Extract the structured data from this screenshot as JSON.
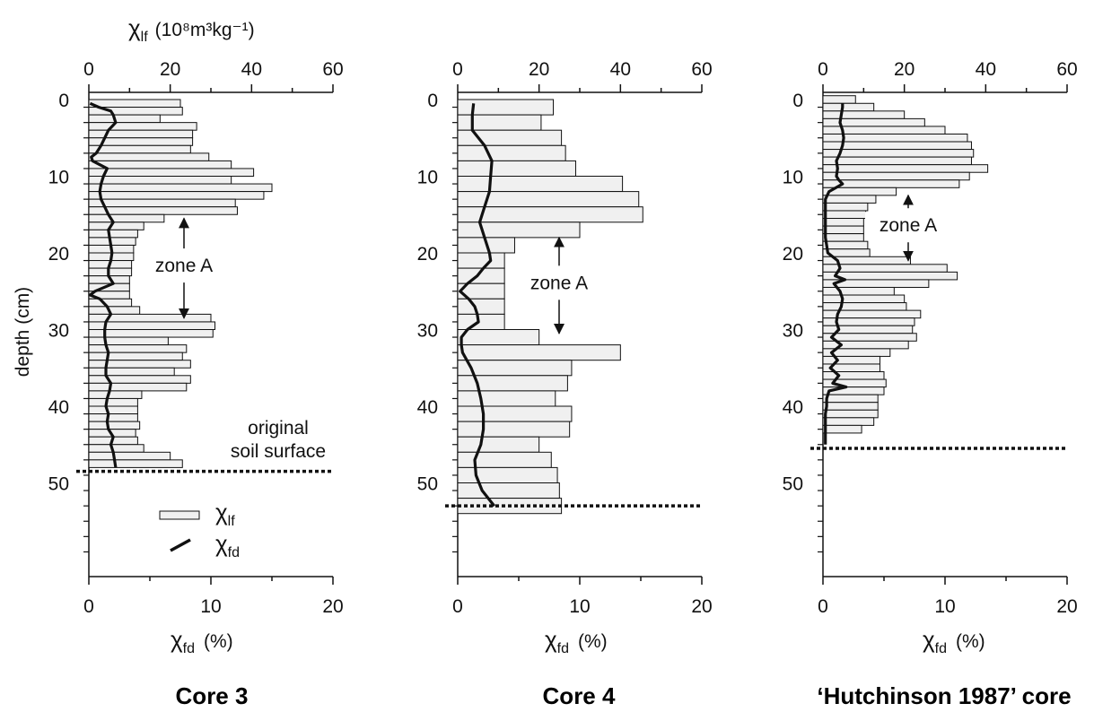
{
  "figure": {
    "top_axis_label": {
      "symbol": "χ",
      "sub": "lf",
      "unit": "(10⁸m³kg⁻¹)"
    },
    "bottom_axis_label": {
      "symbol": "χ",
      "sub": "fd",
      "unit": "(%)"
    },
    "y_axis_label": "depth (cm)",
    "legend": {
      "lf": {
        "symbol": "χ",
        "sub": "lf"
      },
      "fd": {
        "symbol": "χ",
        "sub": "fd"
      }
    },
    "colors": {
      "bar_fill": "#f0f0f0",
      "line": "#111111",
      "dotted": "#111111"
    }
  },
  "chart_data": [
    {
      "type": "bar",
      "title": "Core 3",
      "top_axis": {
        "label": "χlf (10⁸m³kg⁻¹)",
        "range": [
          0,
          60
        ],
        "ticks": [
          0,
          20,
          40,
          60
        ]
      },
      "bottom_axis": {
        "label": "χfd (%)",
        "range": [
          0,
          20
        ],
        "ticks": [
          0,
          10,
          20
        ]
      },
      "y_axis": {
        "label": "depth (cm)",
        "range": [
          -1,
          60
        ],
        "ticks": [
          0,
          10,
          20,
          30,
          40,
          50
        ]
      },
      "chi_lf": {
        "depth_top": [
          0,
          1,
          2,
          3,
          4,
          5,
          6,
          7,
          8,
          9,
          10,
          11,
          12,
          13,
          14,
          15,
          16,
          17,
          18,
          19,
          20,
          21,
          22,
          23,
          24,
          25,
          26,
          27,
          28,
          29,
          30,
          31,
          32,
          33,
          34,
          35,
          36,
          37,
          38,
          39,
          40,
          41,
          42,
          43,
          44,
          45,
          46,
          47
        ],
        "values": [
          22.5,
          23,
          17.5,
          26.5,
          25.5,
          25.5,
          25,
          29.5,
          35,
          40.5,
          35,
          45,
          43,
          36,
          36.5,
          18.5,
          13.5,
          12,
          11.5,
          11,
          11,
          10.5,
          10.5,
          10,
          10,
          10,
          10.5,
          12.5,
          30,
          31,
          30.5,
          19.5,
          24,
          23,
          25,
          21,
          25,
          24,
          13,
          12,
          12,
          12,
          12.5,
          11.5,
          12,
          13.5,
          20,
          23
        ]
      },
      "chi_fd": {
        "depth": [
          0.5,
          1,
          1.5,
          2,
          3,
          4,
          5,
          6,
          7,
          7.5,
          8,
          9,
          10,
          11,
          12,
          13,
          14,
          15,
          16,
          17,
          18,
          19,
          20,
          21,
          22,
          23,
          24,
          25,
          25.5,
          26,
          27,
          28,
          29,
          30,
          31,
          32,
          33,
          34,
          35,
          36,
          37,
          38,
          39,
          40,
          41,
          42,
          43,
          44,
          45,
          46,
          47,
          48
        ],
        "values": [
          0.1,
          0.8,
          1.8,
          2,
          2.2,
          1.6,
          1.3,
          1.0,
          0.6,
          0.2,
          0.3,
          1.5,
          1.2,
          1.0,
          0.9,
          1.0,
          1.3,
          1.6,
          2.0,
          1.6,
          1.7,
          1.8,
          1.9,
          1.8,
          1.6,
          1.6,
          2.0,
          0.5,
          0.1,
          0.9,
          1.5,
          1.8,
          1.4,
          1.3,
          1.3,
          1.4,
          1.6,
          1.5,
          1.4,
          1.4,
          1.8,
          1.7,
          1.5,
          1.4,
          1.6,
          1.5,
          1.6,
          2.0,
          1.8,
          2.0,
          2.1,
          2.2
        ]
      },
      "boundary_depth": 48.5,
      "zone_a": {
        "label": "zone A",
        "from": 15.5,
        "to": 28.5
      },
      "annotation": [
        "original",
        "soil surface"
      ]
    },
    {
      "type": "bar",
      "title": "Core 4",
      "top_axis": {
        "label": "χlf (10⁸m³kg⁻¹)",
        "range": [
          0,
          60
        ],
        "ticks": [
          0,
          20,
          40,
          60
        ]
      },
      "bottom_axis": {
        "label": "χfd (%)",
        "range": [
          0,
          20
        ],
        "ticks": [
          0,
          10,
          20
        ]
      },
      "y_axis": {
        "label": "depth (cm)",
        "range": [
          -1,
          60
        ],
        "ticks": [
          0,
          10,
          20,
          30,
          40,
          50
        ]
      },
      "chi_lf": {
        "depth_top": [
          0,
          2,
          4,
          6,
          8,
          10,
          12,
          14,
          16,
          18,
          20,
          22,
          24,
          26,
          28,
          30,
          32,
          34,
          36,
          38,
          40,
          42,
          44,
          46,
          48,
          50,
          52
        ],
        "values": [
          23.5,
          20.5,
          25.5,
          26.5,
          29,
          40.5,
          44.5,
          45.5,
          30,
          14,
          11.5,
          11.5,
          11.5,
          11.5,
          11.5,
          20,
          40,
          28,
          27,
          24,
          28,
          27.5,
          20,
          23,
          24.5,
          25,
          25.5
        ]
      },
      "chi_fd": {
        "depth": [
          0.5,
          2,
          4,
          6,
          8,
          10,
          12,
          14,
          16,
          18,
          20,
          21,
          22,
          23,
          24,
          25,
          26,
          27,
          28,
          29,
          30,
          31,
          32,
          33,
          35,
          37,
          39,
          41,
          43,
          45,
          47,
          49,
          51,
          53
        ],
        "values": [
          1.3,
          1.2,
          1.2,
          2.2,
          2.8,
          2.7,
          2.6,
          2.2,
          1.8,
          2.2,
          2.6,
          2.7,
          2.1,
          1.6,
          0.8,
          0.2,
          0.9,
          1.4,
          1.6,
          1.7,
          0.8,
          0.3,
          0.3,
          0.4,
          1.1,
          1.6,
          1.9,
          2.1,
          2.1,
          1.9,
          1.4,
          1.5,
          2.0,
          3.0
        ]
      },
      "boundary_depth": 53,
      "zone_a": {
        "label": "zone A",
        "from": 18,
        "to": 30.5
      }
    },
    {
      "type": "bar",
      "title": "‘Hutchinson 1987’ core",
      "top_axis": {
        "label": "χlf (10⁸m³kg⁻¹)",
        "range": [
          0,
          60
        ],
        "ticks": [
          0,
          20,
          40,
          60
        ]
      },
      "bottom_axis": {
        "label": "χfd (%)",
        "range": [
          0,
          20
        ],
        "ticks": [
          0,
          10,
          20
        ]
      },
      "y_axis": {
        "label": "depth (cm)",
        "range": [
          -1,
          60
        ],
        "ticks": [
          0,
          10,
          20,
          30,
          40,
          50
        ]
      },
      "chi_lf": {
        "depth_top": [
          -0.5,
          0.5,
          1.5,
          2.5,
          3.5,
          4.5,
          5.5,
          6.5,
          7.5,
          8.5,
          9.5,
          10.5,
          11.5,
          12.5,
          13.5,
          14.5,
          15.5,
          16.5,
          17.5,
          18.5,
          19.5,
          20.5,
          21.5,
          22.5,
          23.5,
          24.5,
          25.5,
          26.5,
          27.5,
          28.5,
          29.5,
          30.5,
          31.5,
          32.5,
          33.5,
          34.5,
          35.5,
          36.5,
          37.5,
          38.5,
          39.5,
          40.5,
          41.5,
          42.5,
          43.5
        ],
        "values": [
          8,
          12.5,
          20,
          25,
          30,
          35.5,
          36.5,
          37,
          36.5,
          40.5,
          36,
          33.5,
          18,
          13,
          11,
          10.5,
          10,
          10,
          10,
          11,
          11.5,
          21.5,
          30.5,
          33,
          26,
          17.5,
          20,
          20.5,
          24,
          22.5,
          22,
          23,
          21,
          16.5,
          14,
          14,
          15,
          15.5,
          15,
          13.5,
          13.5,
          13.5,
          12.5,
          9.5,
          0
        ]
      },
      "chi_fd": {
        "depth": [
          0.5,
          1,
          2,
          3,
          4,
          5,
          6,
          7,
          8,
          9,
          10,
          10.5,
          11,
          12,
          13,
          14,
          15,
          16,
          17,
          18,
          19,
          20,
          21,
          22,
          23,
          23.5,
          24,
          25,
          26,
          27,
          28,
          29,
          30,
          31,
          32,
          33,
          34,
          35,
          36,
          37,
          37.5,
          38,
          39,
          40,
          41,
          42,
          43,
          44,
          45
        ],
        "values": [
          1.6,
          1.6,
          1.5,
          1.4,
          1.6,
          1.7,
          1.6,
          1.4,
          1.1,
          1.2,
          1.1,
          1.3,
          1.6,
          0.5,
          0.2,
          0.2,
          0.2,
          0.2,
          0.2,
          0.2,
          0.3,
          0.4,
          1.2,
          1.4,
          1.0,
          1.8,
          0.9,
          1.4,
          1.6,
          1.5,
          1.2,
          1.1,
          1.3,
          0.7,
          1.5,
          0.7,
          1.2,
          0.6,
          1.3,
          0.8,
          1.9,
          0.5,
          0.3,
          0.3,
          0.2,
          0.2,
          0.2,
          0.2,
          0.2
        ]
      },
      "boundary_depth": 45.5,
      "zone_a": {
        "label": "zone A",
        "from": 12.5,
        "to": 21
      }
    }
  ]
}
